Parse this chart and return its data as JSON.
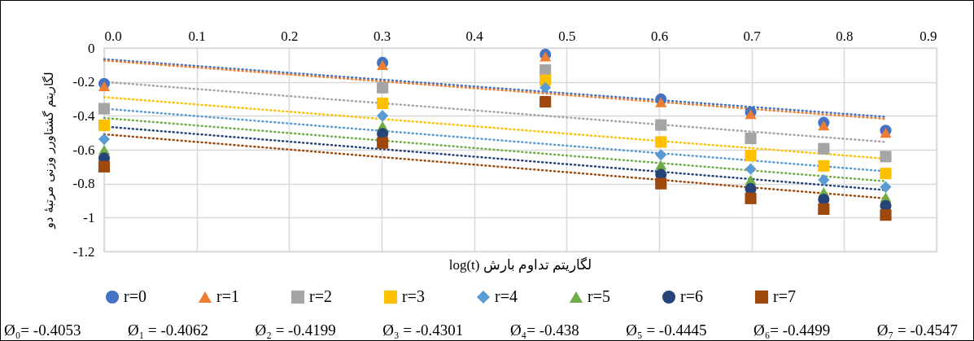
{
  "chart_data": {
    "type": "scatter",
    "xlabel": "لگاریتم تداوم بارش log(t)",
    "ylabel": "لگاریتم گشتاورر وزنی مرتبهٔ دو",
    "x": [
      0,
      0.301,
      0.477,
      0.602,
      0.699,
      0.778,
      0.845
    ],
    "xlim": [
      0,
      0.9
    ],
    "xticks": [
      {
        "value": 0,
        "label": "0.0"
      },
      0.1,
      0.2,
      0.3,
      0.4,
      0.5,
      0.6,
      0.7,
      0.8,
      0.9
    ],
    "ylim": [
      -1.2,
      0
    ],
    "yticks": [
      0,
      -0.2,
      -0.4,
      -0.6,
      -0.8,
      -1,
      -1.2
    ],
    "grid": true,
    "legend": "bottom",
    "series": [
      {
        "name": "r=0",
        "color": "#4472c4",
        "marker": "circle",
        "values": [
          -0.21,
          -0.086,
          -0.038,
          -0.302,
          -0.378,
          -0.44,
          -0.486
        ]
      },
      {
        "name": "r=1",
        "color": "#ed7d31",
        "marker": "triangle",
        "values": [
          -0.225,
          -0.1,
          -0.05,
          -0.32,
          -0.39,
          -0.457,
          -0.5
        ]
      },
      {
        "name": "r=2",
        "color": "#a5a5a5",
        "marker": "square",
        "values": [
          -0.358,
          -0.234,
          -0.13,
          -0.454,
          -0.533,
          -0.594,
          -0.64
        ]
      },
      {
        "name": "r=3",
        "color": "#ffc000",
        "marker": "square",
        "values": [
          -0.456,
          -0.326,
          -0.19,
          -0.554,
          -0.634,
          -0.695,
          -0.74
        ]
      },
      {
        "name": "r=4",
        "color": "#5b9bd5",
        "marker": "diamond",
        "values": [
          -0.538,
          -0.4,
          -0.234,
          -0.63,
          -0.714,
          -0.778,
          -0.82
        ]
      },
      {
        "name": "r=5",
        "color": "#70ad47",
        "marker": "triangle",
        "values": [
          -0.6,
          -0.46,
          null,
          -0.69,
          -0.778,
          -0.85,
          -0.88
        ]
      },
      {
        "name": "r=6",
        "color": "#264478",
        "marker": "circle",
        "values": [
          -0.65,
          -0.506,
          null,
          -0.746,
          -0.83,
          -0.893,
          -0.93
        ]
      },
      {
        "name": "r=7",
        "color": "#9e480e",
        "marker": "square",
        "values": [
          -0.7,
          -0.56,
          -0.317,
          -0.8,
          -0.887,
          -0.95,
          -0.985
        ]
      },
      {
        "type": "line",
        "color": "#4472c4",
        "line_style": "dotted",
        "marker": "none",
        "values": [
          -0.066,
          -0.187,
          -0.258,
          -0.308,
          -0.347,
          -0.379,
          -0.406
        ]
      },
      {
        "type": "line",
        "color": "#ed7d31",
        "line_style": "dotted",
        "marker": "none",
        "values": [
          -0.074,
          -0.197,
          -0.268,
          -0.319,
          -0.359,
          -0.391,
          -0.418
        ]
      },
      {
        "type": "line",
        "color": "#a5a5a5",
        "line_style": "dotted",
        "marker": "none",
        "values": [
          -0.2,
          -0.326,
          -0.4,
          -0.452,
          -0.493,
          -0.526,
          -0.554
        ]
      },
      {
        "type": "line",
        "color": "#ffc000",
        "line_style": "dotted",
        "marker": "none",
        "values": [
          -0.29,
          -0.419,
          -0.495,
          -0.549,
          -0.59,
          -0.624,
          -0.653
        ]
      },
      {
        "type": "line",
        "color": "#5b9bd5",
        "line_style": "dotted",
        "marker": "none",
        "values": [
          -0.358,
          -0.489,
          -0.566,
          -0.621,
          -0.663,
          -0.698,
          -0.727
        ]
      },
      {
        "type": "line",
        "color": "#70ad47",
        "line_style": "dotted",
        "marker": "none",
        "values": [
          -0.413,
          -0.546,
          -0.624,
          -0.679,
          -0.722,
          -0.756,
          -0.786
        ]
      },
      {
        "type": "line",
        "color": "#264478",
        "line_style": "dotted",
        "marker": "none",
        "values": [
          -0.463,
          -0.597,
          -0.675,
          -0.73,
          -0.773,
          -0.808,
          -0.838
        ]
      },
      {
        "type": "line",
        "color": "#9e480e",
        "line_style": "dotted",
        "marker": "none",
        "values": [
          -0.509,
          -0.644,
          -0.722,
          -0.778,
          -0.822,
          -0.857,
          -0.887
        ]
      }
    ],
    "annotations": [
      "Ø₀= -0.4053",
      "Ø₁ = -0.4062",
      "Ø₂ = -0.4199",
      "Ø₃ = -0.4301",
      "Ø₄= -0.438",
      "Ø₅ = -0.4445",
      "Ø₆= -0.4499",
      "Ø₇ = -0.4547"
    ]
  }
}
